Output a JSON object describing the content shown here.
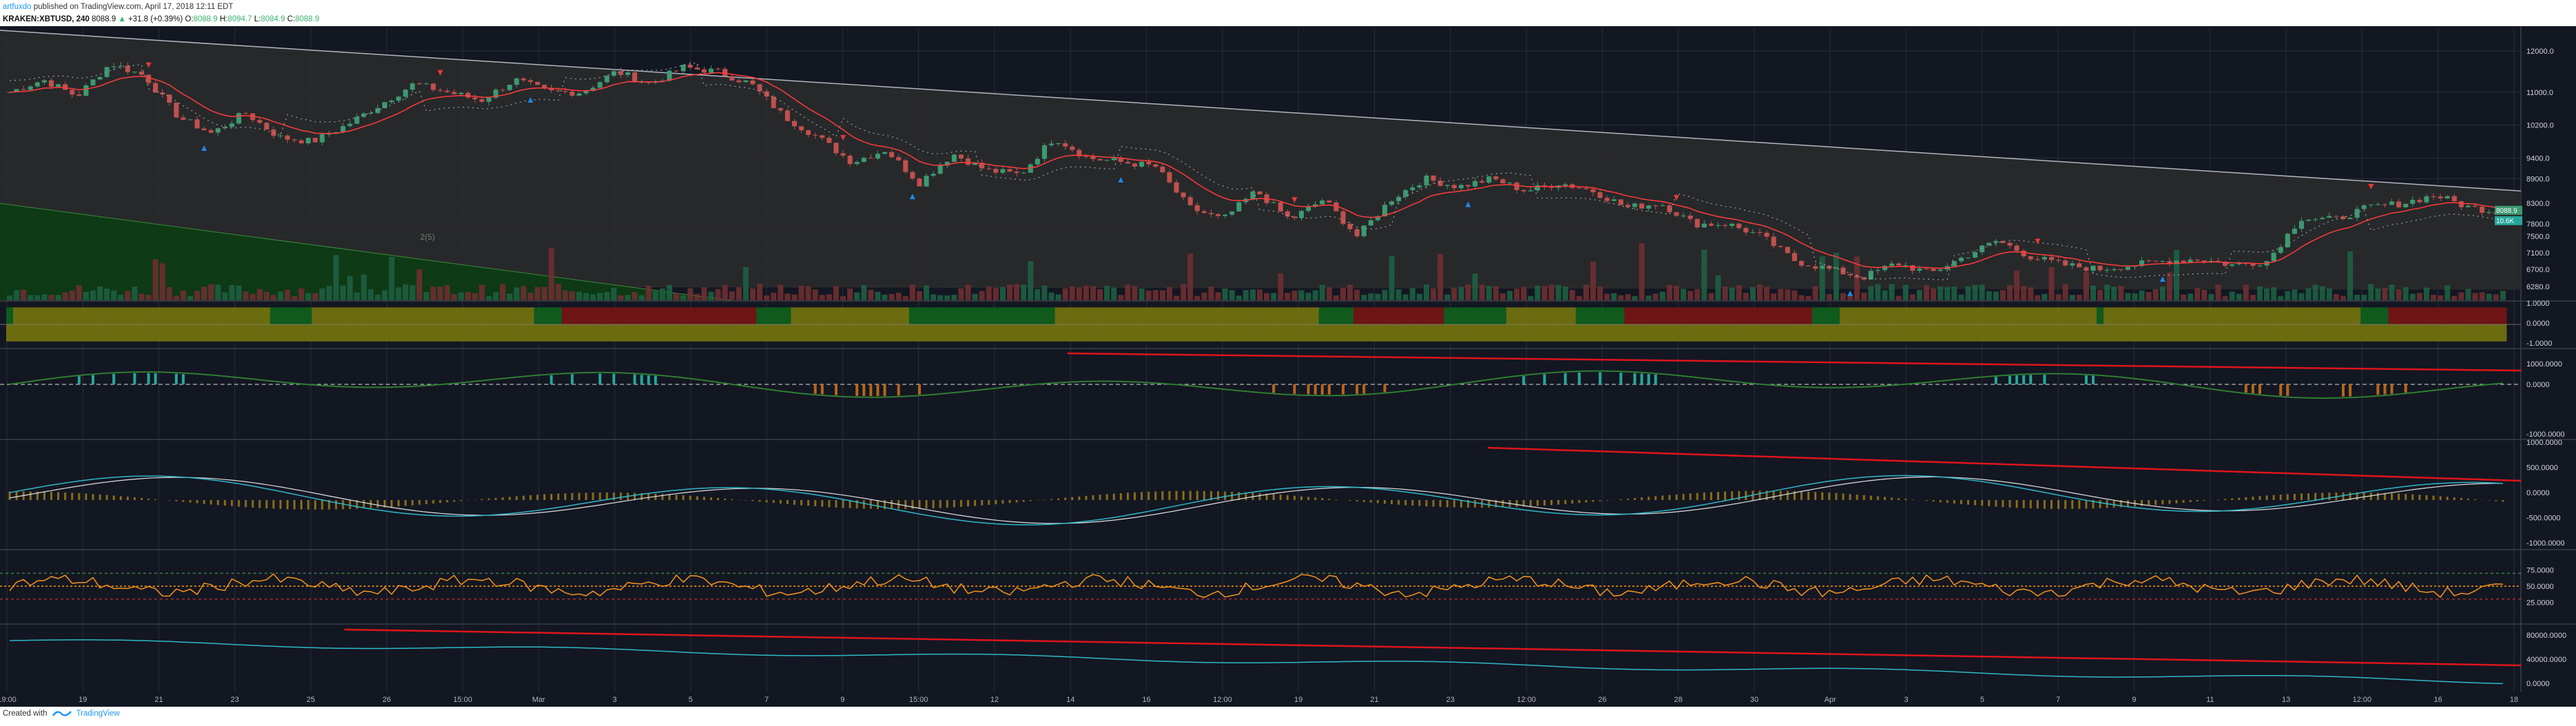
{
  "header": {
    "author": "artfuxdo",
    "published": "published on TradingView.com, April 17, 2018 12:11 EDT",
    "symbol": "KRAKEN:XBTUSD, 240",
    "last": "8088.9",
    "change": "+31.8 (+0.39%)",
    "o_label": "O:",
    "o_value": "8088.9",
    "h_label": "H:",
    "h_value": "8094.7",
    "l_label": "L:",
    "l_value": "8084.9",
    "c_label": "C:",
    "c_value": "8088.9"
  },
  "footer": {
    "created_with": "Created with",
    "brand": "TradingView"
  },
  "colors": {
    "background": "#131722",
    "grid": "#2a2e39",
    "up": "#3d9970",
    "down": "#c0504d",
    "channel": "#b2b5be",
    "trend_red": "#e0141c",
    "olive": "#6b6b10",
    "teal": "#26a69a",
    "orange": "#f7931a",
    "cyan": "#2fb8c9"
  },
  "axes": {
    "x_ticks": [
      "19:00",
      "19",
      "21",
      "23",
      "25",
      "26",
      "15:00",
      "Mar",
      "3",
      "5",
      "7",
      "9",
      "15:00",
      "12",
      "14",
      "16",
      "12:00",
      "19",
      "21",
      "23",
      "12:00",
      "26",
      "28",
      "30",
      "Apr",
      "3",
      "5",
      "7",
      "9",
      "11",
      "13",
      "12:00",
      "16",
      "18"
    ],
    "main_ticks": [
      "12000.0",
      "11000.0",
      "10200.0",
      "9400.0",
      "8900.0",
      "8300.0",
      "7800.0",
      "7500.0",
      "7100.0",
      "6700.0",
      "6280.0"
    ],
    "price_tags": [
      "8088.9",
      "10.6K"
    ],
    "wave_label": "2(5)",
    "panel2_ticks": [
      "1.0000",
      "0.0000",
      "-1.0000"
    ],
    "panel3_ticks": [
      "1000.0000",
      "0.0000",
      "-1000.0000"
    ],
    "panel4_ticks": [
      "1000.0000",
      "500.0000",
      "0.0000",
      "-500.0000",
      "-1000.0000"
    ],
    "panel5_ticks": [
      "75.0000",
      "50.0000",
      "25.0000"
    ],
    "panel6_ticks": [
      "80000.0000",
      "40000.0000",
      "0.0000"
    ]
  },
  "chart_data": {
    "type": "candlestick",
    "symbol": "KRAKEN:XBTUSD",
    "timeframe": "240",
    "price_keypoints": [
      11000,
      11300,
      10900,
      11700,
      11400,
      10400,
      10000,
      10500,
      9900,
      9800,
      10200,
      10700,
      11200,
      11000,
      10800,
      11300,
      11000,
      11000,
      11500,
      11200,
      11600,
      11500,
      11200,
      10400,
      9900,
      9300,
      9600,
      8800,
      9500,
      9100,
      9000,
      9900,
      9400,
      9300,
      9200,
      8200,
      7900,
      8600,
      7900,
      8400,
      7500,
      8400,
      8900,
      8700,
      8900,
      8600,
      8800,
      8600,
      8200,
      8300,
      7800,
      7800,
      7500,
      6900,
      6700,
      6500,
      6850,
      6600,
      7000,
      7400,
      7000,
      6800,
      6700,
      6800,
      6900,
      6950,
      6800,
      6900,
      7950,
      7900,
      8200,
      8300,
      8500,
      8200,
      8089
    ],
    "ohlc_last": {
      "open": 8088.9,
      "high": 8094.7,
      "low": 8084.9,
      "close": 8088.9
    },
    "ylim": [
      6280,
      12200
    ]
  }
}
